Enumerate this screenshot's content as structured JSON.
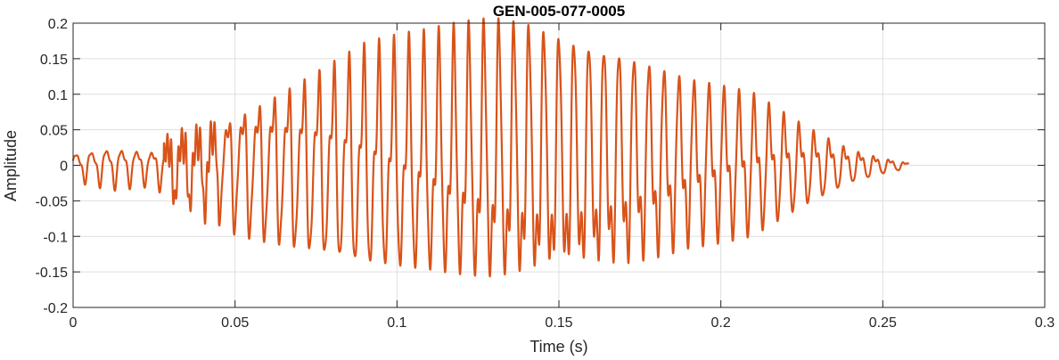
{
  "chart_data": {
    "type": "line",
    "title": "GEN-005-077-0005",
    "xlabel": "Time (s)",
    "ylabel": "Amplitude",
    "xlim": [
      0,
      0.3
    ],
    "ylim": [
      -0.2,
      0.2
    ],
    "xticks": [
      0,
      0.05,
      0.1,
      0.15,
      0.2,
      0.25,
      0.3
    ],
    "xtick_labels": [
      "0",
      "0.05",
      "0.1",
      "0.15",
      "0.2",
      "0.25",
      "0.3"
    ],
    "yticks": [
      -0.2,
      -0.15,
      -0.1,
      -0.05,
      0,
      0.05,
      0.1,
      0.15,
      0.2
    ],
    "ytick_labels": [
      "-0.2",
      "-0.15",
      "-0.1",
      "-0.05",
      "0",
      "0.05",
      "0.1",
      "0.15",
      "0.2"
    ],
    "grid": true,
    "series": [
      {
        "color": "#D95319",
        "x_start": 0,
        "x_end": 0.258,
        "envelope": [
          [
            0,
            0.02
          ],
          [
            0.012,
            0.03
          ],
          [
            0.025,
            0.025
          ],
          [
            0.03,
            0.045
          ],
          [
            0.04,
            0.06
          ],
          [
            0.05,
            0.09
          ],
          [
            0.07,
            0.125
          ],
          [
            0.09,
            0.16
          ],
          [
            0.11,
            0.17
          ],
          [
            0.13,
            0.19
          ],
          [
            0.14,
            0.19
          ],
          [
            0.15,
            0.18
          ],
          [
            0.17,
            0.16
          ],
          [
            0.19,
            0.12
          ],
          [
            0.21,
            0.1
          ],
          [
            0.225,
            0.06
          ],
          [
            0.24,
            0.025
          ],
          [
            0.25,
            0.012
          ],
          [
            0.258,
            0.004
          ]
        ],
        "carrier_frequency_hz": 215
      }
    ]
  }
}
